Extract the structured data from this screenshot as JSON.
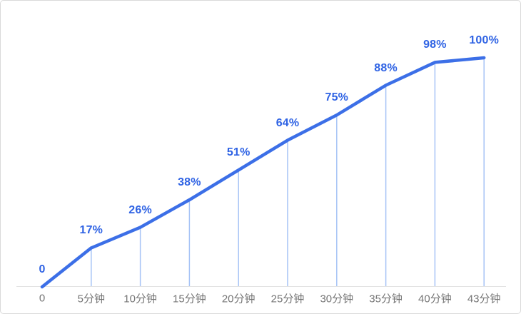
{
  "chart_data": {
    "type": "line",
    "title": "",
    "xlabel": "",
    "ylabel": "",
    "categories": [
      "0",
      "5分钟",
      "10分钟",
      "15分钟",
      "20分钟",
      "25分钟",
      "30分钟",
      "35分钟",
      "40分钟",
      "43分钟"
    ],
    "x_minutes": [
      0,
      5,
      10,
      15,
      20,
      25,
      30,
      35,
      40,
      43
    ],
    "values": [
      0,
      17,
      26,
      38,
      51,
      64,
      75,
      88,
      98,
      100
    ],
    "point_labels": [
      "0",
      "17%",
      "26%",
      "38%",
      "51%",
      "64%",
      "75%",
      "88%",
      "98%",
      "100%"
    ],
    "ylim": [
      0,
      100
    ],
    "grid": false,
    "legend_position": "none",
    "colors": {
      "line": "#3c6fe7",
      "point_label": "#2f63e4",
      "dropline": "#a6c3f6",
      "axis_line": "#e2e2e2",
      "tick_label": "#757575",
      "card_border": "#d9d9d9",
      "background": "#ffffff"
    }
  }
}
